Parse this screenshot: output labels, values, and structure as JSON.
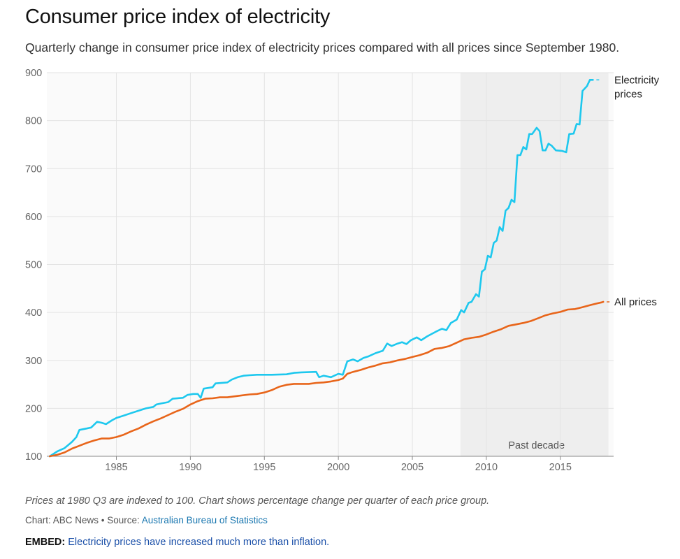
{
  "header": {
    "title": "Consumer price index of electricity",
    "subtitle": "Quarterly change in consumer price index of electricity prices compared with all prices since September 1980."
  },
  "footer": {
    "note": "Prices at 1980 Q3 are indexed to 100. Chart shows percentage change per quarter of each price group.",
    "credit_prefix": "Chart: ABC News • Source: ",
    "source_link": "Australian Bureau of Statistics",
    "embed_label": "EMBED:",
    "embed_text": "Electricity prices have increased much more than inflation."
  },
  "colors": {
    "electricity": "#1ec8ee",
    "all_prices": "#e8651a",
    "shade": "#eeeeee",
    "grid": "#e3e3e3"
  },
  "chart_data": {
    "type": "line",
    "title": "Consumer price index of electricity",
    "subtitle": "Quarterly change in consumer price index of electricity prices compared with all prices since September 1980.",
    "xlabel": "",
    "ylabel": "",
    "xlim": [
      1980.3,
      2018.6
    ],
    "ylim": [
      100,
      900
    ],
    "yticks": [
      100,
      200,
      300,
      400,
      500,
      600,
      700,
      800,
      900
    ],
    "xticks": [
      1985,
      1990,
      1995,
      2000,
      2005,
      2010,
      2015
    ],
    "grid": true,
    "shaded_region": {
      "from": 2008.25,
      "to": 2018.25,
      "label": "Past decade"
    },
    "series": [
      {
        "name": "Electricity prices",
        "color": "#1ec8ee",
        "points": [
          [
            1980.5,
            100
          ],
          [
            1981.0,
            110
          ],
          [
            1981.5,
            117
          ],
          [
            1982.0,
            130
          ],
          [
            1982.3,
            140
          ],
          [
            1982.5,
            155
          ],
          [
            1983.0,
            158
          ],
          [
            1983.3,
            160
          ],
          [
            1983.7,
            172
          ],
          [
            1984.0,
            170
          ],
          [
            1984.3,
            167
          ],
          [
            1984.7,
            175
          ],
          [
            1985.0,
            180
          ],
          [
            1985.5,
            185
          ],
          [
            1986.0,
            190
          ],
          [
            1986.5,
            195
          ],
          [
            1987.0,
            200
          ],
          [
            1987.5,
            203
          ],
          [
            1987.7,
            208
          ],
          [
            1988.0,
            210
          ],
          [
            1988.5,
            213
          ],
          [
            1988.8,
            220
          ],
          [
            1989.5,
            222
          ],
          [
            1989.8,
            228
          ],
          [
            1990.2,
            230
          ],
          [
            1990.5,
            230
          ],
          [
            1990.7,
            222
          ],
          [
            1990.9,
            241
          ],
          [
            1991.5,
            244
          ],
          [
            1991.7,
            252
          ],
          [
            1992.5,
            254
          ],
          [
            1992.8,
            260
          ],
          [
            1993.2,
            265
          ],
          [
            1993.6,
            268
          ],
          [
            1994.0,
            269
          ],
          [
            1994.5,
            270
          ],
          [
            1995.5,
            270
          ],
          [
            1996.5,
            271
          ],
          [
            1997.0,
            274
          ],
          [
            1997.5,
            275
          ],
          [
            1998.5,
            276
          ],
          [
            1998.7,
            265
          ],
          [
            1999.0,
            268
          ],
          [
            1999.5,
            265
          ],
          [
            2000.0,
            272
          ],
          [
            2000.3,
            270
          ],
          [
            2000.6,
            298
          ],
          [
            2001.0,
            302
          ],
          [
            2001.3,
            298
          ],
          [
            2001.7,
            305
          ],
          [
            2002.0,
            308
          ],
          [
            2002.5,
            315
          ],
          [
            2002.8,
            318
          ],
          [
            2003.0,
            320
          ],
          [
            2003.3,
            335
          ],
          [
            2003.6,
            330
          ],
          [
            2004.0,
            335
          ],
          [
            2004.3,
            338
          ],
          [
            2004.6,
            334
          ],
          [
            2004.9,
            342
          ],
          [
            2005.3,
            348
          ],
          [
            2005.6,
            342
          ],
          [
            2006.0,
            350
          ],
          [
            2006.3,
            355
          ],
          [
            2006.6,
            360
          ],
          [
            2007.0,
            366
          ],
          [
            2007.3,
            363
          ],
          [
            2007.6,
            378
          ],
          [
            2008.0,
            385
          ],
          [
            2008.3,
            405
          ],
          [
            2008.5,
            400
          ],
          [
            2008.8,
            420
          ],
          [
            2009.0,
            422
          ],
          [
            2009.3,
            438
          ],
          [
            2009.5,
            433
          ],
          [
            2009.7,
            485
          ],
          [
            2009.9,
            490
          ],
          [
            2010.1,
            518
          ],
          [
            2010.3,
            515
          ],
          [
            2010.5,
            545
          ],
          [
            2010.7,
            550
          ],
          [
            2010.9,
            578
          ],
          [
            2011.1,
            570
          ],
          [
            2011.3,
            612
          ],
          [
            2011.5,
            618
          ],
          [
            2011.7,
            635
          ],
          [
            2011.9,
            630
          ],
          [
            2012.1,
            728
          ],
          [
            2012.3,
            728
          ],
          [
            2012.5,
            745
          ],
          [
            2012.7,
            740
          ],
          [
            2012.9,
            772
          ],
          [
            2013.1,
            772
          ],
          [
            2013.4,
            785
          ],
          [
            2013.6,
            778
          ],
          [
            2013.8,
            738
          ],
          [
            2014.0,
            738
          ],
          [
            2014.2,
            752
          ],
          [
            2014.4,
            748
          ],
          [
            2014.7,
            738
          ],
          [
            2015.1,
            737
          ],
          [
            2015.4,
            734
          ],
          [
            2015.6,
            772
          ],
          [
            2015.9,
            773
          ],
          [
            2016.1,
            793
          ],
          [
            2016.3,
            792
          ],
          [
            2016.5,
            862
          ],
          [
            2016.8,
            872
          ],
          [
            2017.0,
            885
          ],
          [
            2017.2,
            885
          ]
        ]
      },
      {
        "name": "All prices",
        "color": "#e8651a",
        "points": [
          [
            1980.5,
            100
          ],
          [
            1981.0,
            103
          ],
          [
            1981.5,
            108
          ],
          [
            1982.0,
            116
          ],
          [
            1982.5,
            122
          ],
          [
            1983.0,
            128
          ],
          [
            1983.5,
            133
          ],
          [
            1984.0,
            137
          ],
          [
            1984.5,
            137
          ],
          [
            1985.0,
            140
          ],
          [
            1985.5,
            145
          ],
          [
            1986.0,
            152
          ],
          [
            1986.5,
            158
          ],
          [
            1987.0,
            166
          ],
          [
            1987.5,
            173
          ],
          [
            1988.0,
            179
          ],
          [
            1988.5,
            186
          ],
          [
            1989.0,
            193
          ],
          [
            1989.5,
            199
          ],
          [
            1990.0,
            208
          ],
          [
            1990.5,
            215
          ],
          [
            1991.0,
            220
          ],
          [
            1991.5,
            221
          ],
          [
            1992.0,
            223
          ],
          [
            1992.5,
            223
          ],
          [
            1993.0,
            225
          ],
          [
            1993.5,
            227
          ],
          [
            1994.0,
            229
          ],
          [
            1994.5,
            230
          ],
          [
            1995.0,
            233
          ],
          [
            1995.5,
            238
          ],
          [
            1996.0,
            245
          ],
          [
            1996.5,
            249
          ],
          [
            1997.0,
            251
          ],
          [
            1997.5,
            251
          ],
          [
            1998.0,
            251
          ],
          [
            1998.5,
            253
          ],
          [
            1999.0,
            254
          ],
          [
            1999.5,
            256
          ],
          [
            2000.0,
            259
          ],
          [
            2000.3,
            262
          ],
          [
            2000.6,
            272
          ],
          [
            2001.0,
            276
          ],
          [
            2001.5,
            280
          ],
          [
            2002.0,
            285
          ],
          [
            2002.5,
            289
          ],
          [
            2003.0,
            294
          ],
          [
            2003.5,
            296
          ],
          [
            2004.0,
            300
          ],
          [
            2004.5,
            303
          ],
          [
            2005.0,
            307
          ],
          [
            2005.5,
            311
          ],
          [
            2006.0,
            316
          ],
          [
            2006.5,
            324
          ],
          [
            2007.0,
            326
          ],
          [
            2007.5,
            330
          ],
          [
            2008.0,
            337
          ],
          [
            2008.5,
            344
          ],
          [
            2009.0,
            347
          ],
          [
            2009.5,
            349
          ],
          [
            2010.0,
            354
          ],
          [
            2010.5,
            360
          ],
          [
            2011.0,
            365
          ],
          [
            2011.5,
            372
          ],
          [
            2012.0,
            375
          ],
          [
            2012.5,
            378
          ],
          [
            2013.0,
            382
          ],
          [
            2013.5,
            388
          ],
          [
            2014.0,
            394
          ],
          [
            2014.5,
            398
          ],
          [
            2015.0,
            401
          ],
          [
            2015.5,
            406
          ],
          [
            2016.0,
            407
          ],
          [
            2016.5,
            411
          ],
          [
            2017.0,
            415
          ],
          [
            2017.5,
            419
          ],
          [
            2017.8,
            421
          ],
          [
            2017.9,
            422
          ]
        ]
      }
    ],
    "end_labels": [
      {
        "series": "Electricity prices",
        "lines": [
          "Electricity",
          "prices"
        ]
      },
      {
        "series": "All prices",
        "lines": [
          "All prices"
        ]
      }
    ]
  }
}
